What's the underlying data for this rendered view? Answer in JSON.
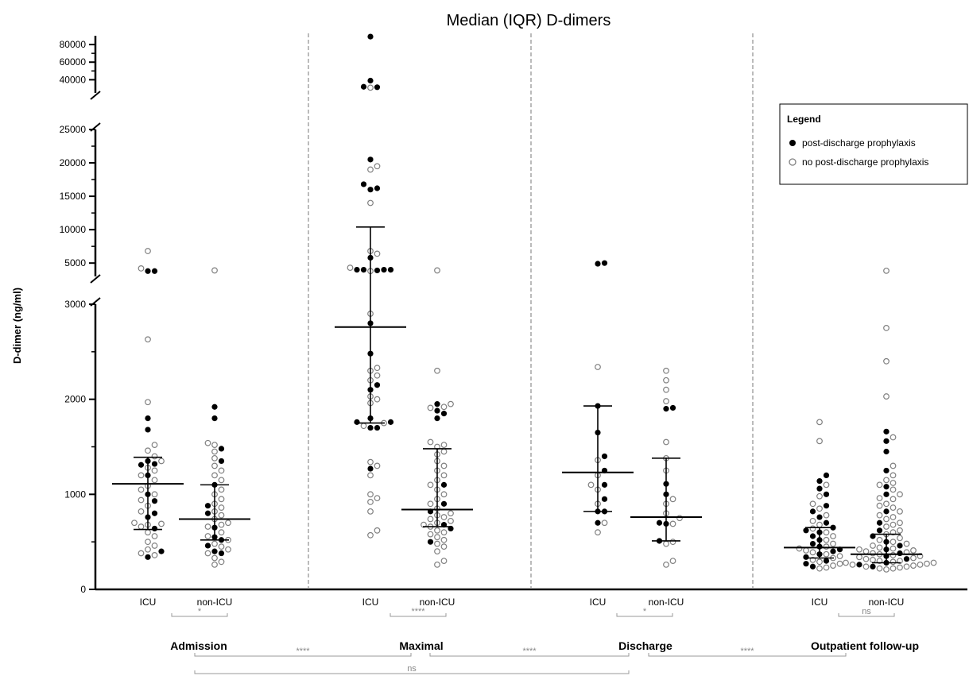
{
  "chart_data": {
    "type": "scatter",
    "title": "Median (IQR) D-dimers",
    "ylabel": "D-dimer (ng/ml)",
    "y_segments": [
      {
        "range": [
          0,
          3000
        ],
        "ticks": [
          0,
          1000,
          2000,
          3000
        ]
      },
      {
        "range": [
          3000,
          25000
        ],
        "ticks": [
          5000,
          10000,
          15000,
          20000,
          25000
        ]
      },
      {
        "range": [
          25000,
          90000
        ],
        "ticks": [
          40000,
          60000,
          80000
        ]
      }
    ],
    "groups": [
      {
        "name": "Admission",
        "categories": [
          "ICU",
          "non-ICU"
        ]
      },
      {
        "name": "Maximal",
        "categories": [
          "ICU",
          "non-ICU"
        ]
      },
      {
        "name": "Discharge",
        "categories": [
          "ICU",
          "non-ICU"
        ]
      },
      {
        "name": "Outpatient follow-up",
        "categories": [
          "ICU",
          "non-ICU"
        ]
      }
    ],
    "summary": [
      {
        "group": "Admission",
        "category": "ICU",
        "median": 1110,
        "q1": 630,
        "q3": 1390
      },
      {
        "group": "Admission",
        "category": "non-ICU",
        "median": 740,
        "q1": 520,
        "q3": 1100
      },
      {
        "group": "Maximal",
        "category": "ICU",
        "median": 2760,
        "q1": 1750,
        "q3": 10400
      },
      {
        "group": "Maximal",
        "category": "non-ICU",
        "median": 840,
        "q1": 660,
        "q3": 1480
      },
      {
        "group": "Discharge",
        "category": "ICU",
        "median": 1230,
        "q1": 820,
        "q3": 1930
      },
      {
        "group": "Discharge",
        "category": "non-ICU",
        "median": 760,
        "q1": 510,
        "q3": 1380
      },
      {
        "group": "Outpatient follow-up",
        "category": "ICU",
        "median": 440,
        "q1": 330,
        "q3": 650
      },
      {
        "group": "Outpatient follow-up",
        "category": "non-ICU",
        "median": 370,
        "q1": 280,
        "q3": 580
      }
    ],
    "points": [
      {
        "box": 0,
        "filled": [
          1350,
          1320,
          1680,
          1800,
          930,
          1000,
          800,
          760,
          400,
          340,
          3800,
          3800,
          1200,
          640,
          1310
        ],
        "open": [
          6800,
          4200,
          2630,
          1970,
          1520,
          1460,
          1400,
          1280,
          1200,
          1150,
          1090,
          1000,
          940,
          880,
          820,
          700,
          690,
          680,
          660,
          600,
          560,
          500,
          460,
          420,
          380,
          360,
          1350,
          1050,
          1250
        ]
      },
      {
        "box": 1,
        "filled": [
          1920,
          1800,
          1480,
          1100,
          880,
          800,
          650,
          550,
          520,
          460,
          400,
          380,
          1350
        ],
        "open": [
          3900,
          1540,
          1520,
          1380,
          1300,
          1250,
          1200,
          1150,
          1050,
          1000,
          950,
          900,
          860,
          820,
          780,
          740,
          700,
          680,
          660,
          600,
          560,
          520,
          480,
          450,
          420,
          380,
          330,
          290,
          260,
          1450
        ]
      },
      {
        "box": 2,
        "filled": [
          89000,
          39000,
          32000,
          31500,
          20500,
          16800,
          16200,
          16000,
          5800,
          4000,
          4000,
          4000,
          4000,
          3900,
          2800,
          2480,
          2150,
          2100,
          1800,
          1760,
          1760,
          1700,
          1700,
          1270
        ],
        "open": [
          31000,
          19500,
          19000,
          14000,
          6800,
          6400,
          4300,
          3800,
          2900,
          2330,
          2300,
          2250,
          2200,
          2000,
          1750,
          1720,
          1340,
          1300,
          1200,
          960,
          920,
          1000,
          820,
          620,
          570,
          2030,
          1960
        ]
      },
      {
        "box": 3,
        "filled": [
          1950,
          1880,
          1850,
          1800,
          1100,
          900,
          820,
          680,
          640,
          500
        ],
        "open": [
          3900,
          2300,
          1950,
          1920,
          1910,
          1550,
          1500,
          1420,
          1350,
          1300,
          1250,
          1200,
          1150,
          1100,
          1050,
          1000,
          950,
          900,
          850,
          800,
          780,
          760,
          740,
          720,
          700,
          680,
          660,
          620,
          600,
          580,
          550,
          520,
          480,
          450,
          400,
          300,
          260,
          1520,
          1450
        ]
      },
      {
        "box": 4,
        "filled": [
          5000,
          4900,
          1930,
          1650,
          1400,
          1250,
          1100,
          950,
          820,
          820,
          700
        ],
        "open": [
          2340,
          1360,
          1200,
          1100,
          1050,
          900,
          700,
          600
        ]
      },
      {
        "box": 5,
        "filled": [
          1910,
          1900,
          1110,
          1000,
          700,
          690,
          510
        ],
        "open": [
          2300,
          2200,
          2100,
          1980,
          1550,
          1380,
          1250,
          950,
          900,
          800,
          750,
          690,
          500,
          480,
          300,
          260
        ]
      },
      {
        "box": 6,
        "filled": [
          1200,
          1140,
          1060,
          1000,
          880,
          820,
          760,
          700,
          650,
          620,
          600,
          560,
          520,
          480,
          450,
          420,
          400,
          370,
          340,
          300,
          270,
          240
        ],
        "open": [
          1760,
          1560,
          1100,
          980,
          900,
          850,
          780,
          720,
          680,
          640,
          600,
          560,
          520,
          480,
          450,
          430,
          410,
          390,
          370,
          350,
          330,
          310,
          290,
          270,
          250,
          230,
          220
        ]
      },
      {
        "box": 7,
        "filled": [
          1660,
          1560,
          1450,
          1250,
          1080,
          1000,
          820,
          700,
          620,
          560,
          500,
          460,
          420,
          380,
          350,
          320,
          280,
          260,
          240
        ],
        "open": [
          3850,
          2750,
          2400,
          2030,
          1600,
          1300,
          1150,
          1100,
          1050,
          1000,
          950,
          900,
          860,
          820,
          780,
          740,
          700,
          660,
          620,
          580,
          540,
          500,
          480,
          460,
          440,
          420,
          400,
          380,
          360,
          340,
          320,
          300,
          290,
          280,
          270,
          260,
          250,
          240,
          230,
          220,
          210,
          1200,
          1120,
          960,
          880,
          760,
          680,
          600,
          520,
          430,
          410,
          390,
          370,
          350,
          330,
          310,
          300,
          280,
          260,
          240,
          220
        ]
      }
    ],
    "comparisons": [
      {
        "label": "*"
      },
      {
        "label": "****"
      },
      {
        "label": "*"
      },
      {
        "label": "ns"
      },
      {
        "label": "****"
      },
      {
        "label": "****"
      },
      {
        "label": "****"
      },
      {
        "label": "ns"
      }
    ],
    "legend": {
      "title": "Legend",
      "position": "top-right",
      "entries": [
        {
          "label": "post-discharge prophylaxis",
          "marker": "filled"
        },
        {
          "label": "no post-discharge prophylaxis",
          "marker": "open"
        }
      ]
    },
    "colors": {
      "points": "#000000",
      "open_stroke": "#808080",
      "comparison": "#999999",
      "divider": "#777777"
    }
  }
}
